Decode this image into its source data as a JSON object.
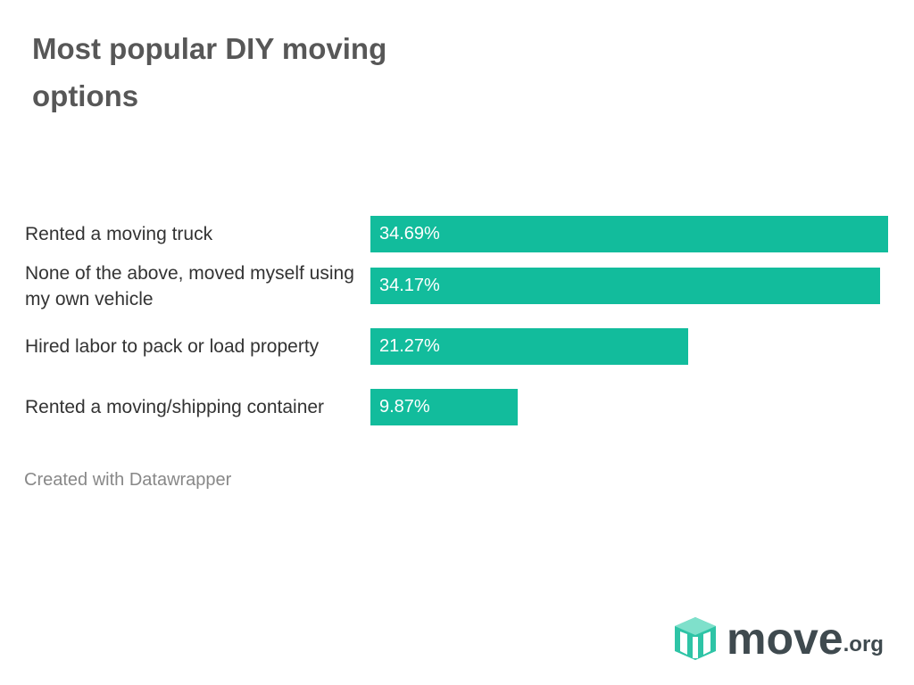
{
  "chart_data": {
    "type": "bar",
    "orientation": "horizontal",
    "title": "Most popular DIY moving options",
    "categories": [
      "Rented a moving truck",
      "None of the above, moved myself using my own vehicle",
      "Hired labor to pack or load property",
      "Rented a moving/shipping container"
    ],
    "values": [
      34.69,
      34.17,
      21.27,
      9.87
    ],
    "value_labels": [
      "34.69%",
      "34.17%",
      "21.27%",
      "9.87%"
    ],
    "color": "#12bc9c",
    "footer": "Created with Datawrapper"
  },
  "logo": {
    "name": "move",
    "suffix": ".org"
  }
}
